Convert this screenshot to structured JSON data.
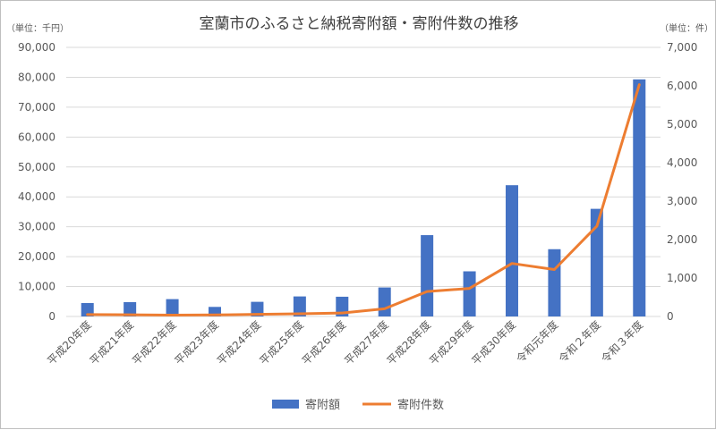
{
  "chart_data": {
    "type": "bar",
    "title": "室蘭市のふるさと納税寄附額・寄附件数の推移",
    "left_unit": "（単位：千円）",
    "right_unit": "（単位：件）",
    "categories": [
      "平成20年度",
      "平成21年度",
      "平成22年度",
      "平成23年度",
      "平成24年度",
      "平成25年度",
      "平成26年度",
      "平成27年度",
      "平成28年度",
      "平成29年度",
      "平成30年度",
      "令和元年度",
      "令和２年度",
      "令和３年度"
    ],
    "left_axis": {
      "min": 0,
      "max": 90000,
      "step": 10000,
      "tick_labels": [
        "0",
        "10,000",
        "20,000",
        "30,000",
        "40,000",
        "50,000",
        "60,000",
        "70,000",
        "80,000",
        "90,000"
      ]
    },
    "right_axis": {
      "min": 0,
      "max": 7000,
      "step": 1000,
      "tick_labels": [
        "0",
        "1,000",
        "2,000",
        "3,000",
        "4,000",
        "5,000",
        "6,000",
        "7,000"
      ]
    },
    "grid": true,
    "legend_position": "bottom",
    "series": [
      {
        "name": "寄附額",
        "type": "bar",
        "axis": "left",
        "color": "#4472c4",
        "values": [
          4500,
          4800,
          5800,
          3200,
          4900,
          6700,
          6600,
          9700,
          27200,
          15100,
          43900,
          22500,
          36000,
          79300
        ]
      },
      {
        "name": "寄附件数",
        "type": "line",
        "axis": "right",
        "color": "#ed7d31",
        "values": [
          50,
          45,
          35,
          40,
          55,
          70,
          90,
          200,
          650,
          730,
          1380,
          1220,
          2350,
          6030
        ]
      }
    ]
  }
}
